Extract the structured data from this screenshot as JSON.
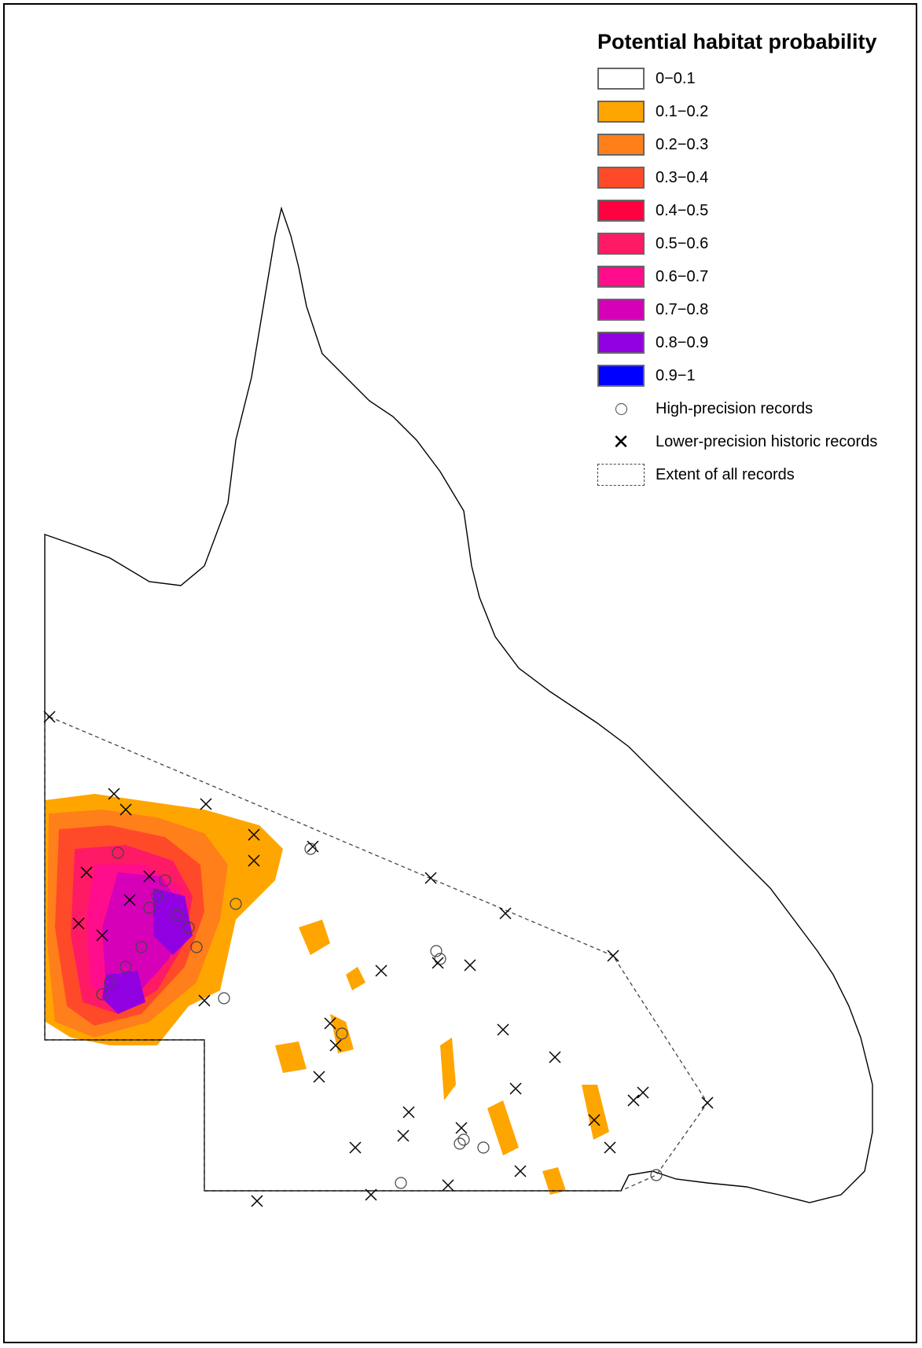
{
  "legend": {
    "title": "Potential habitat probability",
    "classes": [
      {
        "label": "0−0.1",
        "color": "#ffffff"
      },
      {
        "label": "0.1−0.2",
        "color": "#ffa500"
      },
      {
        "label": "0.2−0.3",
        "color": "#ff7f1a"
      },
      {
        "label": "0.3−0.4",
        "color": "#ff4a2a"
      },
      {
        "label": "0.4−0.5",
        "color": "#ff0040"
      },
      {
        "label": "0.5−0.6",
        "color": "#ff1a66"
      },
      {
        "label": "0.6−0.7",
        "color": "#ff0d8c"
      },
      {
        "label": "0.7−0.8",
        "color": "#d600b8"
      },
      {
        "label": "0.8−0.9",
        "color": "#9100e0"
      },
      {
        "label": "0.9−1",
        "color": "#0000ff"
      }
    ],
    "symbols": {
      "high_precision": "High-precision records",
      "lower_precision": "Lower-precision historic records",
      "extent": "Extent of all records"
    }
  },
  "map": {
    "region_outline_color": "#000000",
    "extent_line_color": "#444444"
  }
}
